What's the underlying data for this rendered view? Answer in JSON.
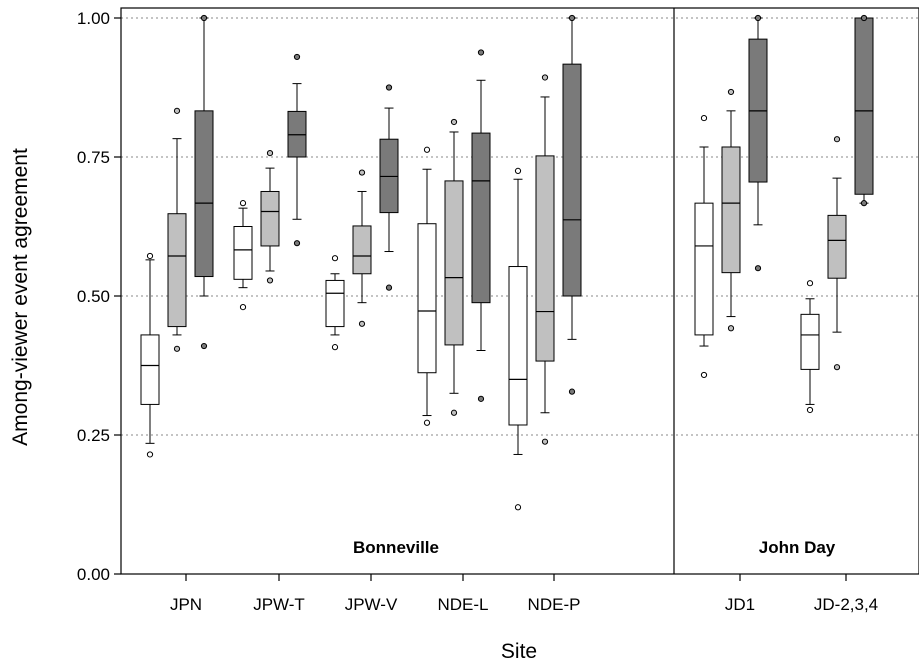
{
  "chart_data": {
    "type": "boxplot",
    "xlabel": "Site",
    "ylabel": "Among-viewer event agreement",
    "ylim": [
      0,
      1
    ],
    "yticks": [
      "0.00",
      "0.25",
      "0.50",
      "0.75",
      "1.00"
    ],
    "grid": "horizontal dotted",
    "panels": [
      {
        "label": "Bonneville",
        "sites": [
          "JPN",
          "JPW-T",
          "JPW-V",
          "NDE-L",
          "NDE-P"
        ]
      },
      {
        "label": "John Day",
        "sites": [
          "JD1",
          "JD-2,3,4"
        ]
      }
    ],
    "series_colors": [
      "#ffffff",
      "#c0c0c0",
      "#7a7a7a"
    ],
    "sites": [
      {
        "site": "JPN",
        "boxes": [
          {
            "whisker_low": 0.235,
            "q1": 0.305,
            "median": 0.375,
            "q3": 0.43,
            "whisker_high": 0.565,
            "outliers": [
              0.215,
              0.572
            ]
          },
          {
            "whisker_low": 0.43,
            "q1": 0.445,
            "median": 0.572,
            "q3": 0.648,
            "whisker_high": 0.783,
            "outliers": [
              0.405,
              0.833
            ]
          },
          {
            "whisker_low": 0.5,
            "q1": 0.535,
            "median": 0.667,
            "q3": 0.833,
            "whisker_high": 1.0,
            "outliers": [
              0.41,
              1.0
            ]
          }
        ]
      },
      {
        "site": "JPW-T",
        "boxes": [
          {
            "whisker_low": 0.515,
            "q1": 0.53,
            "median": 0.583,
            "q3": 0.625,
            "whisker_high": 0.658,
            "outliers": [
              0.48,
              0.667
            ]
          },
          {
            "whisker_low": 0.545,
            "q1": 0.59,
            "median": 0.652,
            "q3": 0.688,
            "whisker_high": 0.73,
            "outliers": [
              0.528,
              0.757
            ]
          },
          {
            "whisker_low": 0.638,
            "q1": 0.75,
            "median": 0.79,
            "q3": 0.832,
            "whisker_high": 0.882,
            "outliers": [
              0.595,
              0.93
            ]
          }
        ]
      },
      {
        "site": "JPW-V",
        "boxes": [
          {
            "whisker_low": 0.43,
            "q1": 0.445,
            "median": 0.505,
            "q3": 0.528,
            "whisker_high": 0.54,
            "outliers": [
              0.408,
              0.568
            ]
          },
          {
            "whisker_low": 0.488,
            "q1": 0.54,
            "median": 0.572,
            "q3": 0.626,
            "whisker_high": 0.688,
            "outliers": [
              0.45,
              0.722
            ]
          },
          {
            "whisker_low": 0.58,
            "q1": 0.65,
            "median": 0.715,
            "q3": 0.782,
            "whisker_high": 0.838,
            "outliers": [
              0.515,
              0.875
            ]
          }
        ]
      },
      {
        "site": "NDE-L",
        "boxes": [
          {
            "whisker_low": 0.285,
            "q1": 0.362,
            "median": 0.473,
            "q3": 0.63,
            "whisker_high": 0.728,
            "outliers": [
              0.272,
              0.763
            ]
          },
          {
            "whisker_low": 0.325,
            "q1": 0.412,
            "median": 0.533,
            "q3": 0.707,
            "whisker_high": 0.795,
            "outliers": [
              0.29,
              0.813
            ]
          },
          {
            "whisker_low": 0.402,
            "q1": 0.488,
            "median": 0.707,
            "q3": 0.793,
            "whisker_high": 0.888,
            "outliers": [
              0.315,
              0.938
            ]
          }
        ]
      },
      {
        "site": "NDE-P",
        "boxes": [
          {
            "whisker_low": 0.215,
            "q1": 0.268,
            "median": 0.35,
            "q3": 0.553,
            "whisker_high": 0.71,
            "outliers": [
              0.12,
              0.725
            ]
          },
          {
            "whisker_low": 0.29,
            "q1": 0.383,
            "median": 0.472,
            "q3": 0.752,
            "whisker_high": 0.858,
            "outliers": [
              0.238,
              0.893
            ]
          },
          {
            "whisker_low": 0.422,
            "q1": 0.5,
            "median": 0.637,
            "q3": 0.917,
            "whisker_high": 1.0,
            "outliers": [
              0.328,
              1.0
            ]
          }
        ]
      },
      {
        "site": "JD1",
        "boxes": [
          {
            "whisker_low": 0.41,
            "q1": 0.43,
            "median": 0.59,
            "q3": 0.667,
            "whisker_high": 0.768,
            "outliers": [
              0.358,
              0.82
            ]
          },
          {
            "whisker_low": 0.463,
            "q1": 0.542,
            "median": 0.667,
            "q3": 0.768,
            "whisker_high": 0.833,
            "outliers": [
              0.442,
              0.867
            ]
          },
          {
            "whisker_low": 0.628,
            "q1": 0.705,
            "median": 0.833,
            "q3": 0.962,
            "whisker_high": 1.0,
            "outliers": [
              0.55,
              1.0
            ]
          }
        ]
      },
      {
        "site": "JD-2,3,4",
        "boxes": [
          {
            "whisker_low": 0.305,
            "q1": 0.368,
            "median": 0.43,
            "q3": 0.467,
            "whisker_high": 0.495,
            "outliers": [
              0.295,
              0.523
            ]
          },
          {
            "whisker_low": 0.435,
            "q1": 0.532,
            "median": 0.6,
            "q3": 0.645,
            "whisker_high": 0.712,
            "outliers": [
              0.372,
              0.782
            ]
          },
          {
            "whisker_low": 0.667,
            "q1": 0.683,
            "median": 0.833,
            "q3": 1.0,
            "whisker_high": 1.0,
            "outliers": [
              0.667,
              1.0
            ]
          }
        ]
      }
    ]
  }
}
